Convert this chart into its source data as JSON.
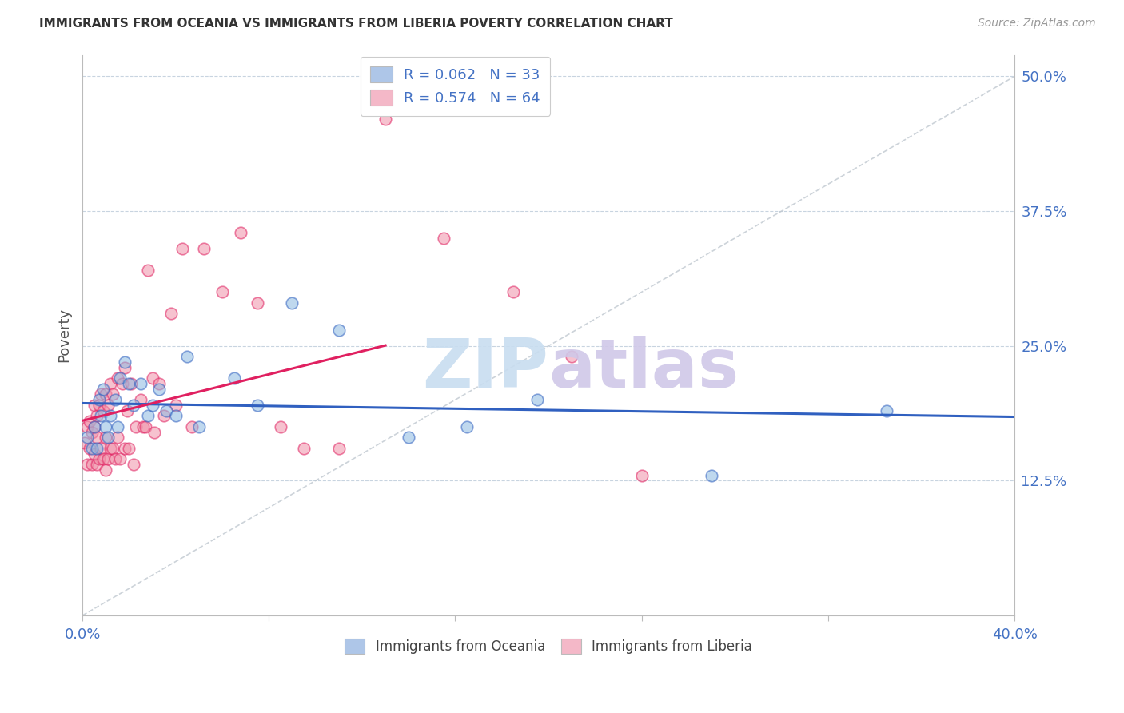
{
  "title": "IMMIGRANTS FROM OCEANIA VS IMMIGRANTS FROM LIBERIA POVERTY CORRELATION CHART",
  "source": "Source: ZipAtlas.com",
  "ylabel": "Poverty",
  "xlim": [
    0.0,
    0.4
  ],
  "ylim": [
    0.0,
    0.52
  ],
  "yticks_right": [
    0.125,
    0.25,
    0.375,
    0.5
  ],
  "ytick_labels_right": [
    "12.5%",
    "25.0%",
    "37.5%",
    "50.0%"
  ],
  "legend_blue_label": "R = 0.062   N = 33",
  "legend_pink_label": "R = 0.574   N = 64",
  "legend_blue_color": "#aec6e8",
  "legend_pink_color": "#f4b8c8",
  "oceania_color": "#8cb8e0",
  "liberia_color": "#f090a8",
  "oceania_line_color": "#3060c0",
  "liberia_line_color": "#e02060",
  "watermark_zip": "ZIP",
  "watermark_atlas": "atlas",
  "watermark_color_zip": "#c8ddf0",
  "watermark_color_atlas": "#d0c8e8",
  "oceania_x": [
    0.002,
    0.004,
    0.005,
    0.006,
    0.007,
    0.008,
    0.009,
    0.01,
    0.011,
    0.012,
    0.014,
    0.015,
    0.016,
    0.018,
    0.02,
    0.022,
    0.025,
    0.028,
    0.03,
    0.033,
    0.036,
    0.04,
    0.045,
    0.05,
    0.065,
    0.075,
    0.09,
    0.11,
    0.14,
    0.165,
    0.195,
    0.27,
    0.345
  ],
  "oceania_y": [
    0.165,
    0.155,
    0.175,
    0.155,
    0.2,
    0.185,
    0.21,
    0.175,
    0.165,
    0.185,
    0.2,
    0.175,
    0.22,
    0.235,
    0.215,
    0.195,
    0.215,
    0.185,
    0.195,
    0.21,
    0.19,
    0.185,
    0.24,
    0.175,
    0.22,
    0.195,
    0.29,
    0.265,
    0.165,
    0.175,
    0.2,
    0.13,
    0.19
  ],
  "liberia_x": [
    0.001,
    0.002,
    0.002,
    0.003,
    0.003,
    0.004,
    0.004,
    0.005,
    0.005,
    0.005,
    0.006,
    0.006,
    0.006,
    0.007,
    0.007,
    0.008,
    0.008,
    0.009,
    0.009,
    0.01,
    0.01,
    0.01,
    0.011,
    0.011,
    0.012,
    0.012,
    0.013,
    0.013,
    0.014,
    0.015,
    0.015,
    0.016,
    0.017,
    0.018,
    0.018,
    0.019,
    0.02,
    0.021,
    0.022,
    0.023,
    0.025,
    0.026,
    0.027,
    0.028,
    0.03,
    0.031,
    0.033,
    0.035,
    0.038,
    0.04,
    0.043,
    0.047,
    0.052,
    0.06,
    0.068,
    0.075,
    0.085,
    0.095,
    0.11,
    0.13,
    0.155,
    0.185,
    0.21,
    0.24
  ],
  "liberia_y": [
    0.16,
    0.14,
    0.175,
    0.155,
    0.18,
    0.14,
    0.17,
    0.15,
    0.175,
    0.195,
    0.14,
    0.165,
    0.185,
    0.145,
    0.195,
    0.155,
    0.205,
    0.145,
    0.19,
    0.135,
    0.165,
    0.205,
    0.145,
    0.195,
    0.155,
    0.215,
    0.155,
    0.205,
    0.145,
    0.165,
    0.22,
    0.145,
    0.215,
    0.155,
    0.23,
    0.19,
    0.155,
    0.215,
    0.14,
    0.175,
    0.2,
    0.175,
    0.175,
    0.32,
    0.22,
    0.17,
    0.215,
    0.185,
    0.28,
    0.195,
    0.34,
    0.175,
    0.34,
    0.3,
    0.355,
    0.29,
    0.175,
    0.155,
    0.155,
    0.46,
    0.35,
    0.3,
    0.24,
    0.13
  ]
}
